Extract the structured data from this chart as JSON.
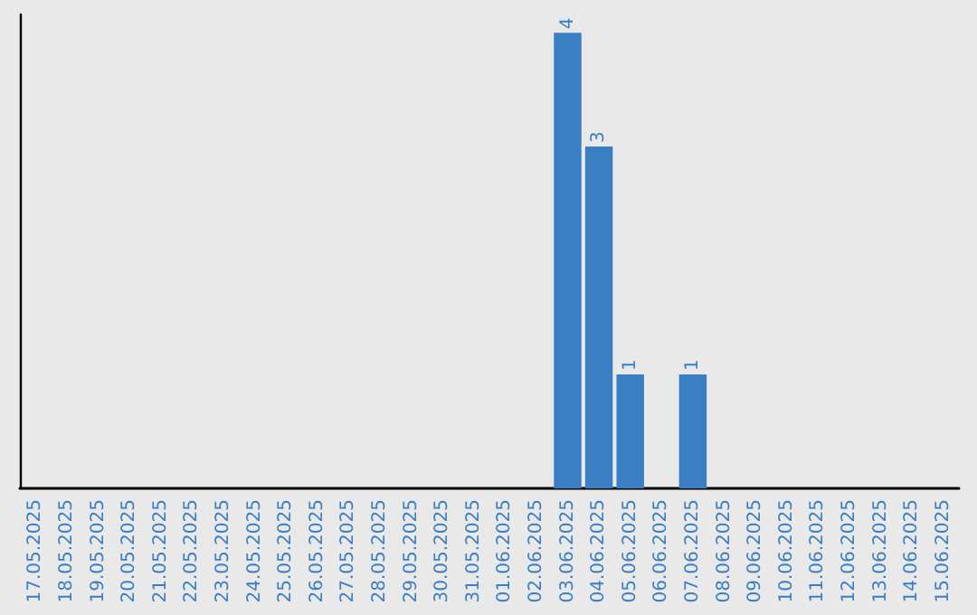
{
  "chart_data": {
    "type": "bar",
    "categories": [
      "17.05.2025",
      "18.05.2025",
      "19.05.2025",
      "20.05.2025",
      "21.05.2025",
      "22.05.2025",
      "23.05.2025",
      "24.05.2025",
      "25.05.2025",
      "26.05.2025",
      "27.05.2025",
      "28.05.2025",
      "29.05.2025",
      "30.05.2025",
      "31.05.2025",
      "01.06.2025",
      "02.06.2025",
      "03.06.2025",
      "04.06.2025",
      "05.06.2025",
      "06.06.2025",
      "07.06.2025",
      "08.06.2025",
      "09.06.2025",
      "10.06.2025",
      "11.06.2025",
      "12.06.2025",
      "13.06.2025",
      "14.06.2025",
      "15.06.2025"
    ],
    "values": [
      null,
      null,
      null,
      null,
      null,
      null,
      null,
      null,
      null,
      null,
      null,
      null,
      null,
      null,
      null,
      null,
      null,
      4,
      3,
      1,
      null,
      1,
      null,
      null,
      null,
      null,
      null,
      null,
      null,
      null
    ],
    "data_labels": true,
    "color": "#3a7ec4",
    "tick_labels": "x",
    "grid": false
  }
}
